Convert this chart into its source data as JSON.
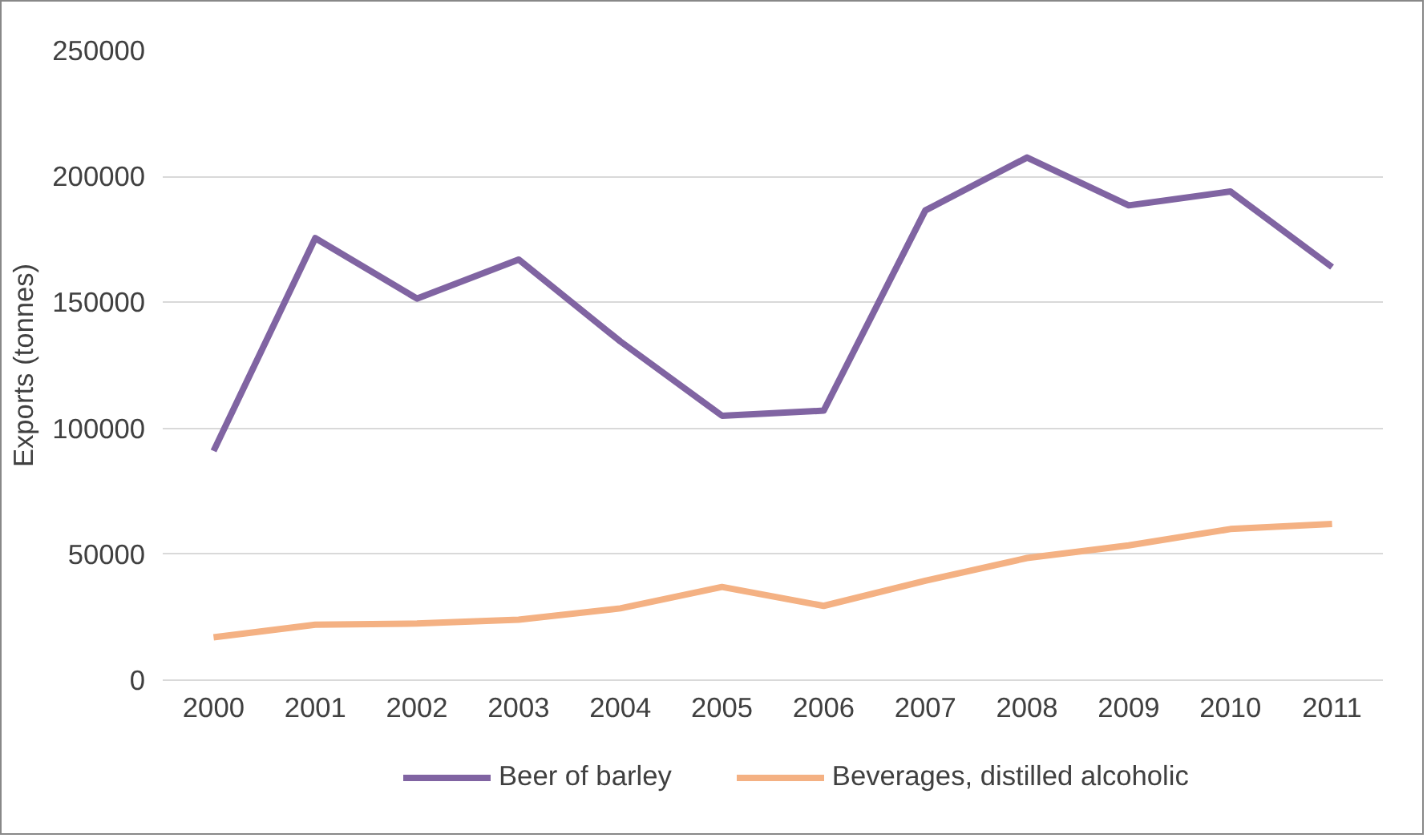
{
  "chart_data": {
    "type": "line",
    "ylabel": "Exports (tonnes)",
    "categories": [
      "2000",
      "2001",
      "2002",
      "2003",
      "2004",
      "2005",
      "2006",
      "2007",
      "2008",
      "2009",
      "2010",
      "2011"
    ],
    "series": [
      {
        "name": "Beer of barley",
        "color": "#8064a2",
        "values": [
          91000,
          175500,
          151500,
          167000,
          134500,
          105000,
          107000,
          186500,
          207500,
          188500,
          194000,
          164000
        ]
      },
      {
        "name": "Beverages, distilled alcoholic",
        "color": "#f4b183",
        "values": [
          17000,
          22000,
          22500,
          24000,
          28500,
          37000,
          29500,
          39500,
          48500,
          53500,
          60000,
          62000
        ]
      }
    ],
    "ylim": [
      0,
      250000
    ],
    "yticks": [
      0,
      50000,
      100000,
      150000,
      200000,
      250000
    ],
    "grid": "y",
    "legend": "bottom",
    "marker": "none",
    "line_style": "solid"
  }
}
